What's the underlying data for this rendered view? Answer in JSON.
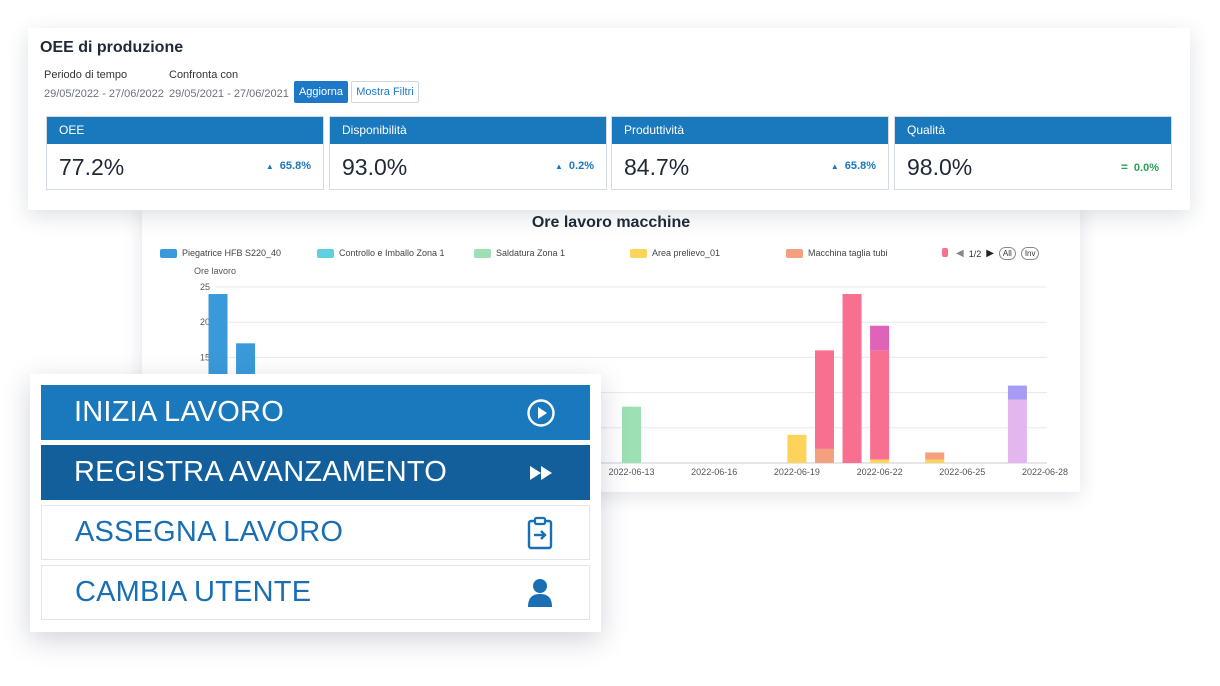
{
  "oee": {
    "title": "OEE di produzione",
    "period_label": "Periodo di tempo",
    "period_value": "29/05/2022 - 27/06/2022",
    "compare_label": "Confronta con",
    "compare_value": "29/05/2021 - 27/06/2021",
    "update_button": "Aggiorna",
    "filters_button": "Mostra Filtri",
    "kpis": [
      {
        "label": "OEE",
        "value": "77.2%",
        "delta": "65.8%",
        "trend": "up"
      },
      {
        "label": "Disponibilità",
        "value": "93.0%",
        "delta": "0.2%",
        "trend": "up"
      },
      {
        "label": "Produttività",
        "value": "84.7%",
        "delta": "65.8%",
        "trend": "up"
      },
      {
        "label": "Qualità",
        "value": "98.0%",
        "delta": "0.0%",
        "trend": "equal"
      }
    ],
    "colors": {
      "header": "#1a78bd",
      "up": "#1a78bd",
      "equal": "#2aa05a"
    }
  },
  "chart": {
    "legend_page": "1/2",
    "all_label": "All",
    "inv_label": "Inv"
  },
  "chart_data": {
    "type": "bar",
    "stacked": true,
    "title": "Ore lavoro macchine",
    "ylabel": "Ore lavoro",
    "xlabel": "",
    "ylim": [
      0,
      25
    ],
    "yticks": [
      15,
      20,
      25
    ],
    "x_tick_labels": [
      "2022-06-13",
      "2022-06-16",
      "2022-06-19",
      "2022-06-22",
      "2022-06-25",
      "2022-06-28"
    ],
    "categories": [
      "2022-05-29",
      "2022-05-30",
      "2022-06-13",
      "2022-06-19",
      "2022-06-20",
      "2022-06-21",
      "2022-06-22",
      "2022-06-24",
      "2022-06-27"
    ],
    "grid": true,
    "legend_position": "top",
    "series": [
      {
        "name": "Piegatrice HFB S220_40",
        "color": "#3a9ad9",
        "values": [
          24,
          17,
          0,
          0,
          0,
          0,
          0,
          0,
          0
        ]
      },
      {
        "name": "Controllo e Imballo Zona 1",
        "color": "#5fd0df",
        "values": [
          0,
          0,
          0,
          0,
          0,
          0,
          0,
          0,
          0
        ]
      },
      {
        "name": "Saldatura Zona 1",
        "color": "#9de0b4",
        "values": [
          0,
          0,
          8,
          0,
          0,
          0,
          0,
          0,
          0
        ]
      },
      {
        "name": "Area prelievo_01",
        "color": "#fcd45a",
        "values": [
          0,
          0,
          0,
          4,
          0,
          0,
          0.5,
          0.5,
          0
        ]
      },
      {
        "name": "Macchina taglia tubi",
        "color": "#f4a07f",
        "values": [
          0,
          0,
          0,
          0,
          2,
          0,
          0,
          1,
          0
        ]
      },
      {
        "color": "#f7708f",
        "values": [
          0,
          0,
          0,
          0,
          14,
          24,
          15.5,
          0,
          0
        ]
      },
      {
        "color": "#df63b8",
        "values": [
          0,
          0,
          0,
          0,
          0,
          0,
          3.5,
          0,
          0
        ]
      },
      {
        "color": "#e3b7ee",
        "values": [
          0,
          0,
          0,
          0,
          0,
          0,
          0,
          0,
          9
        ]
      },
      {
        "color": "#a79cf3",
        "values": [
          0,
          0,
          0,
          0,
          0,
          0,
          0,
          0,
          2
        ]
      }
    ]
  },
  "actions": [
    {
      "label": "INIZIA LAVORO",
      "icon": "play-circle-icon",
      "style": "blue"
    },
    {
      "label": "REGISTRA AVANZAMENTO",
      "icon": "fast-forward-icon",
      "style": "dark"
    },
    {
      "label": "ASSEGNA LAVORO",
      "icon": "clipboard-arrow-icon",
      "style": "white"
    },
    {
      "label": "CAMBIA UTENTE",
      "icon": "user-icon",
      "style": "white"
    }
  ]
}
